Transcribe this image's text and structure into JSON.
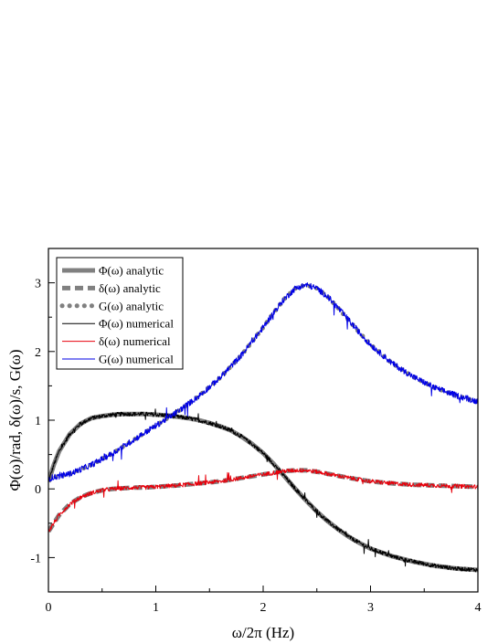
{
  "chart_data": {
    "type": "line",
    "title": "",
    "xlabel": "ω/2π (Hz)",
    "ylabel": "Φ(ω)/rad, δ(ω)/s, G(ω)",
    "xlim": [
      0,
      4
    ],
    "ylim": [
      -1.5,
      3.5
    ],
    "x_ticks": [
      "0",
      "1",
      "2",
      "3",
      "4"
    ],
    "y_ticks": [
      "-1",
      "0",
      "1",
      "2",
      "3"
    ],
    "grid": false,
    "legend_position": "top-left",
    "series": [
      {
        "name": "Φ(ω) analytic",
        "style": "solid-thick",
        "color": "#808080",
        "x": [
          0,
          0.05,
          0.1,
          0.2,
          0.3,
          0.4,
          0.5,
          0.6,
          0.7,
          0.8,
          0.9,
          1.0,
          1.1,
          1.2,
          1.3,
          1.4,
          1.5,
          1.6,
          1.7,
          1.8,
          1.9,
          2.0,
          2.1,
          2.2,
          2.3,
          2.4,
          2.5,
          2.6,
          2.7,
          2.8,
          2.9,
          3.0,
          3.2,
          3.4,
          3.6,
          3.8,
          4.0
        ],
        "y": [
          0.1,
          0.35,
          0.55,
          0.8,
          0.95,
          1.03,
          1.06,
          1.08,
          1.09,
          1.09,
          1.09,
          1.08,
          1.07,
          1.05,
          1.03,
          1.0,
          0.96,
          0.91,
          0.85,
          0.76,
          0.65,
          0.52,
          0.36,
          0.18,
          0.0,
          -0.17,
          -0.33,
          -0.47,
          -0.59,
          -0.7,
          -0.79,
          -0.87,
          -0.98,
          -1.06,
          -1.12,
          -1.16,
          -1.18
        ]
      },
      {
        "name": "δ(ω) analytic",
        "style": "dashed-thick",
        "color": "#808080",
        "x": [
          0,
          0.1,
          0.2,
          0.3,
          0.4,
          0.5,
          0.6,
          0.7,
          0.8,
          0.9,
          1.0,
          1.2,
          1.4,
          1.6,
          1.8,
          2.0,
          2.2,
          2.3,
          2.4,
          2.5,
          2.6,
          2.8,
          3.0,
          3.2,
          3.4,
          3.6,
          3.8,
          4.0
        ],
        "y": [
          -0.62,
          -0.38,
          -0.22,
          -0.12,
          -0.06,
          -0.02,
          0.0,
          0.01,
          0.02,
          0.02,
          0.03,
          0.05,
          0.08,
          0.11,
          0.16,
          0.21,
          0.26,
          0.27,
          0.27,
          0.25,
          0.22,
          0.16,
          0.11,
          0.08,
          0.06,
          0.05,
          0.04,
          0.03
        ]
      },
      {
        "name": "G(ω) analytic",
        "style": "dotted-thick",
        "color": "#808080",
        "x": [
          0,
          0.2,
          0.4,
          0.6,
          0.8,
          1.0,
          1.2,
          1.4,
          1.6,
          1.8,
          2.0,
          2.1,
          2.2,
          2.3,
          2.4,
          2.5,
          2.6,
          2.7,
          2.8,
          2.9,
          3.0,
          3.2,
          3.4,
          3.6,
          3.8,
          4.0
        ],
        "y": [
          0.15,
          0.22,
          0.35,
          0.52,
          0.72,
          0.92,
          1.12,
          1.35,
          1.62,
          1.95,
          2.35,
          2.57,
          2.77,
          2.92,
          2.97,
          2.92,
          2.8,
          2.63,
          2.45,
          2.27,
          2.1,
          1.83,
          1.63,
          1.47,
          1.36,
          1.27
        ]
      },
      {
        "name": "Φ(ω) numerical",
        "style": "solid-thin",
        "color": "#000000",
        "noisy_of": "Φ(ω) analytic"
      },
      {
        "name": "δ(ω) numerical",
        "style": "solid-thin",
        "color": "#e8000b",
        "noisy_of": "δ(ω) analytic"
      },
      {
        "name": "G(ω) numerical",
        "style": "solid-thin",
        "color": "#0000e6",
        "noisy_of": "G(ω) analytic"
      }
    ]
  }
}
